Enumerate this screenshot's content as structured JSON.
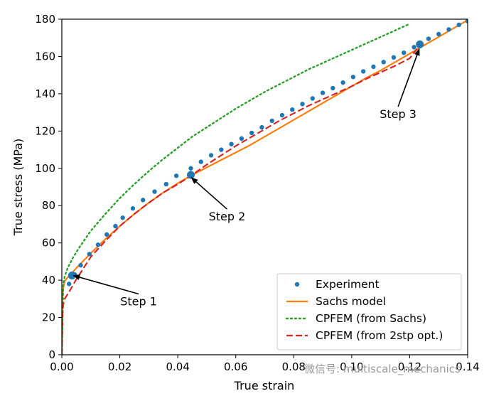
{
  "chart_data": {
    "type": "line",
    "xlabel": "True strain",
    "ylabel": "True stress (MPa)",
    "xlim": [
      0,
      0.14
    ],
    "ylim": [
      0,
      180
    ],
    "xticks": [
      0.0,
      0.02,
      0.04,
      0.06,
      0.08,
      0.1,
      0.12,
      0.14
    ],
    "xtick_labels": [
      "0.00",
      "0.02",
      "0.04",
      "0.06",
      "0.08",
      "0.10",
      "0.12",
      "0.14"
    ],
    "yticks": [
      0,
      20,
      40,
      60,
      80,
      100,
      120,
      140,
      160,
      180
    ],
    "ytick_labels": [
      "0",
      "20",
      "40",
      "60",
      "80",
      "100",
      "120",
      "140",
      "160",
      "180"
    ],
    "grid": false,
    "legend_position": "bottom-right",
    "series": [
      {
        "name": "Experiment",
        "style": "markers",
        "color": "#1f77b4",
        "x": [
          0.0025,
          0.0045,
          0.0065,
          0.0095,
          0.0125,
          0.0155,
          0.0185,
          0.021,
          0.0245,
          0.028,
          0.032,
          0.036,
          0.0395,
          0.0445,
          0.048,
          0.0515,
          0.055,
          0.0585,
          0.062,
          0.0655,
          0.069,
          0.0725,
          0.076,
          0.0795,
          0.083,
          0.0865,
          0.09,
          0.0935,
          0.097,
          0.1005,
          0.104,
          0.1075,
          0.111,
          0.1145,
          0.118,
          0.1215,
          0.1235,
          0.1265,
          0.13,
          0.1335,
          0.137,
          0.14
        ],
        "y": [
          38,
          43,
          48,
          54,
          59,
          64.5,
          69,
          73.5,
          78.5,
          83,
          87.5,
          91.5,
          96,
          100,
          103.5,
          107,
          110,
          113,
          116,
          119,
          122,
          125.5,
          128.5,
          131.5,
          134.5,
          137.5,
          140.5,
          143,
          146,
          149,
          152,
          154.5,
          157,
          159.5,
          162,
          165,
          167,
          169.5,
          172,
          174.5,
          177,
          179
        ]
      },
      {
        "name": "Sachs model",
        "style": "solid",
        "color": "#ff7f0e",
        "x": [
          0,
          0.0002,
          0.0005,
          0.001,
          0.002,
          0.003,
          0.005,
          0.0075,
          0.01,
          0.015,
          0.02,
          0.025,
          0.03,
          0.035,
          0.04,
          0.045,
          0.05,
          0.055,
          0.06,
          0.065,
          0.07,
          0.075,
          0.08,
          0.085,
          0.09,
          0.095,
          0.1,
          0.105,
          0.11,
          0.115,
          0.12,
          0.125,
          0.13,
          0.135,
          0.14
        ],
        "y": [
          0,
          30,
          36,
          39.5,
          41.5,
          43,
          46.5,
          50.5,
          54.5,
          62,
          69,
          75.5,
          81.5,
          87,
          92,
          96.5,
          100.5,
          104.5,
          108.5,
          112.5,
          117,
          121.5,
          126,
          130.5,
          135,
          139.5,
          144,
          148.5,
          152.5,
          157,
          161.5,
          166,
          170.5,
          175,
          179.5
        ]
      },
      {
        "name": "CPFEM (from Sachs)",
        "style": "dotted",
        "color": "#2ca02c",
        "x": [
          0,
          0.0005,
          0.001,
          0.002,
          0.004,
          0.006,
          0.008,
          0.01,
          0.015,
          0.02,
          0.025,
          0.03,
          0.035,
          0.04,
          0.045,
          0.05,
          0.055,
          0.06,
          0.065,
          0.07,
          0.075,
          0.08,
          0.085,
          0.09,
          0.095,
          0.1,
          0.105,
          0.11,
          0.115,
          0.12
        ],
        "y": [
          0,
          38,
          42,
          46.5,
          52.5,
          57.5,
          62,
          66.5,
          75.5,
          84,
          91.5,
          98.5,
          105,
          111,
          117,
          122,
          127,
          132,
          136.5,
          141,
          145,
          149,
          153,
          156.5,
          160,
          163.5,
          167,
          170.5,
          174,
          177.5
        ]
      },
      {
        "name": "CPFEM (from 2stp opt.)",
        "style": "dashed",
        "color": "#d62728",
        "x": [
          0,
          0.0002,
          0.0005,
          0.001,
          0.002,
          0.003,
          0.005,
          0.0075,
          0.01,
          0.015,
          0.02,
          0.025,
          0.03,
          0.035,
          0.04,
          0.0445,
          0.05,
          0.055,
          0.06,
          0.065,
          0.07,
          0.075,
          0.08,
          0.085,
          0.09,
          0.095,
          0.1,
          0.105,
          0.11,
          0.115,
          0.12,
          0.123
        ],
        "y": [
          0,
          22,
          27,
          30,
          32.5,
          35,
          40.5,
          46.5,
          52.5,
          61,
          69,
          75.5,
          81.5,
          87,
          91.5,
          96,
          102,
          107,
          112,
          116.5,
          121,
          125.5,
          129.5,
          133.5,
          137,
          140.5,
          144,
          148,
          151.5,
          155,
          159,
          165
        ]
      }
    ],
    "highlight_points": [
      {
        "x": 0.0035,
        "y": 42.5
      },
      {
        "x": 0.0445,
        "y": 96.5
      },
      {
        "x": 0.1235,
        "y": 166.5
      }
    ],
    "annotations": [
      {
        "text": "Step 1",
        "x": 0.0265,
        "y": 26.5,
        "target_x": 0.004,
        "target_y": 42.5
      },
      {
        "text": "Step 2",
        "x": 0.057,
        "y": 72,
        "target_x": 0.0447,
        "target_y": 95
      },
      {
        "text": "Step 3",
        "x": 0.116,
        "y": 127,
        "target_x": 0.1233,
        "target_y": 164
      }
    ],
    "watermark": "微信号: multiscale_mechanics"
  }
}
